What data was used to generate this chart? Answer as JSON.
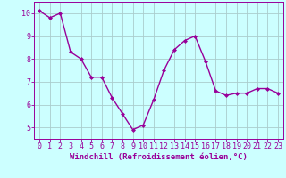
{
  "x": [
    0,
    1,
    2,
    3,
    4,
    5,
    6,
    7,
    8,
    9,
    10,
    11,
    12,
    13,
    14,
    15,
    16,
    17,
    18,
    19,
    20,
    21,
    22,
    23
  ],
  "y": [
    10.1,
    9.8,
    10.0,
    8.3,
    8.0,
    7.2,
    7.2,
    6.3,
    5.6,
    4.9,
    5.1,
    6.2,
    7.5,
    8.4,
    8.8,
    9.0,
    7.9,
    6.6,
    6.4,
    6.5,
    6.5,
    6.7,
    6.7,
    6.5
  ],
  "line_color": "#990099",
  "marker": "D",
  "marker_size": 2,
  "bg_color": "#ccffff",
  "grid_color": "#aacccc",
  "xlabel": "Windchill (Refroidissement éolien,°C)",
  "xlim_left": -0.5,
  "xlim_right": 23.5,
  "ylim": [
    4.5,
    10.5
  ],
  "yticks": [
    5,
    6,
    7,
    8,
    9,
    10
  ],
  "xticks": [
    0,
    1,
    2,
    3,
    4,
    5,
    6,
    7,
    8,
    9,
    10,
    11,
    12,
    13,
    14,
    15,
    16,
    17,
    18,
    19,
    20,
    21,
    22,
    23
  ],
  "xlabel_fontsize": 6.5,
  "tick_fontsize": 6,
  "line_width": 1.0
}
